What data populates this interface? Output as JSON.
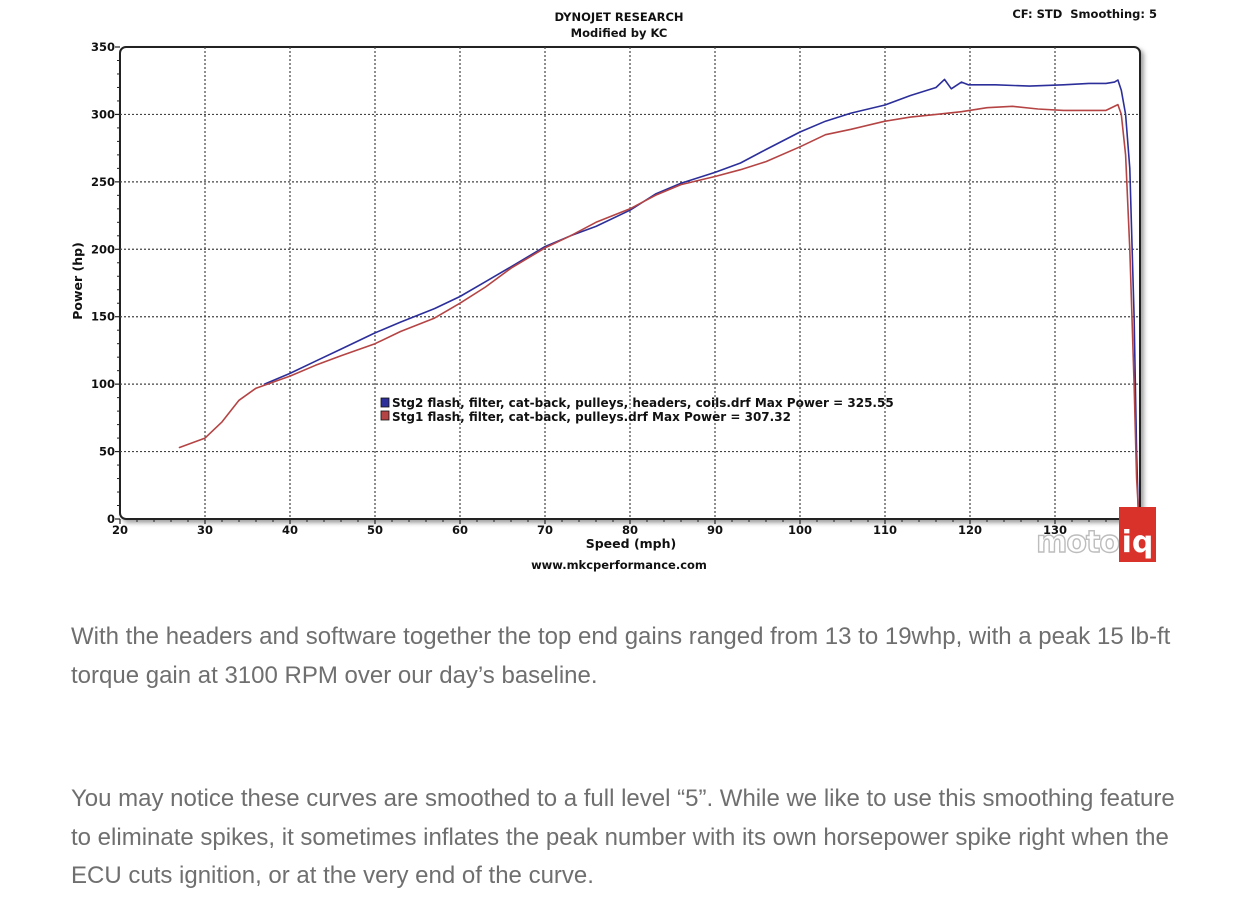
{
  "chart_data": {
    "type": "line",
    "header_title": "DYNOJET RESEARCH",
    "header_subtitle": "Modified by KC",
    "settings": "CF: STD  Smoothing: 5",
    "xlabel": "Speed (mph)",
    "ylabel": "Power (hp)",
    "footer": "www.mkcperformance.com",
    "watermark": "motoiq",
    "xlim": [
      20,
      140
    ],
    "ylim": [
      0,
      350
    ],
    "xticks": [
      20,
      30,
      40,
      50,
      60,
      70,
      80,
      90,
      100,
      110,
      120,
      130,
      140
    ],
    "yticks": [
      0,
      50,
      100,
      150,
      200,
      250,
      300,
      350
    ],
    "grid": true,
    "legend_position": "center",
    "series": [
      {
        "name": "Stg2 flash, filter, cat-back, pulleys, headers, coils.drf Max Power = 325.55",
        "color": "#2c2f9a",
        "x": [
          37,
          40,
          43,
          46,
          50,
          53,
          57,
          60,
          63,
          66,
          70,
          73,
          76,
          80,
          83,
          86,
          90,
          93,
          96,
          100,
          103,
          106,
          110,
          113,
          116,
          117,
          117.8,
          119,
          119.8,
          123,
          127,
          131,
          134,
          136,
          137,
          137.4,
          137.8,
          138.3,
          138.8,
          139.3,
          139.6,
          139.8
        ],
        "y": [
          100,
          108,
          117,
          126,
          138,
          146,
          156,
          165,
          176,
          187,
          202,
          210,
          217,
          229,
          241,
          249,
          257,
          264,
          274,
          287,
          295,
          301,
          307,
          314,
          320,
          326,
          319,
          324,
          322,
          322,
          321,
          322,
          323,
          323,
          324,
          325.5,
          318,
          300,
          260,
          150,
          50,
          5
        ]
      },
      {
        "name": "Stg1 flash, filter, cat-back, pulleys.drf Max Power = 307.32",
        "color": "#b54444",
        "x": [
          27,
          30,
          32,
          34,
          36,
          40,
          43,
          46,
          50,
          53,
          57,
          60,
          63,
          66,
          70,
          73,
          76,
          80,
          83,
          86,
          90,
          93,
          96,
          100,
          103,
          106,
          110,
          113,
          116,
          119,
          122,
          125,
          128,
          131,
          134,
          136,
          137.4,
          137.8,
          138.3,
          138.8,
          139.3,
          139.6,
          139.8
        ],
        "y": [
          53,
          60,
          72,
          88,
          97,
          106,
          114,
          121,
          130,
          139,
          149,
          160,
          172,
          186,
          201,
          210,
          220,
          230,
          240,
          248,
          254,
          259,
          265,
          276,
          285,
          289,
          295,
          298,
          300,
          302,
          305,
          306,
          304,
          303,
          303,
          303,
          307.3,
          300,
          270,
          200,
          100,
          30,
          8
        ]
      }
    ]
  },
  "article": {
    "paragraph1": "With the headers and software together the top end gains ranged from 13 to 19whp, with a peak 15 lb-ft torque gain at 3100 RPM over our day’s baseline.",
    "paragraph2": "You may notice these curves are smoothed to a full level “5”.  While we like to use this smoothing feature to eliminate spikes, it sometimes inflates the peak number with its own horsepower spike right when the ECU cuts ignition, or at the very end of the curve."
  }
}
